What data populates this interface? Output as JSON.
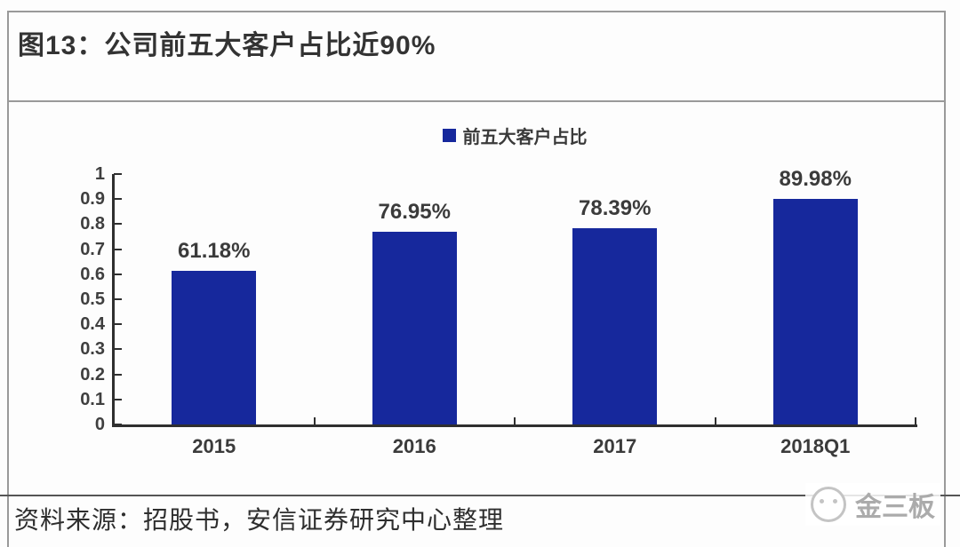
{
  "figure_title": "图13：公司前五大客户占比近90%",
  "source_note": "资料来源：招股书，安信证券研究中心整理",
  "watermark_text": "金三板",
  "chart_data": {
    "type": "bar",
    "title": "图13：公司前五大客户占比近90%",
    "legend": {
      "position": "top",
      "entries": [
        "前五大客户占比"
      ]
    },
    "categories": [
      "2015",
      "2016",
      "2017",
      "2018Q1"
    ],
    "series": [
      {
        "name": "前五大客户占比",
        "values": [
          0.6118,
          0.7695,
          0.7839,
          0.8998
        ]
      }
    ],
    "value_labels": [
      "61.18%",
      "76.95%",
      "78.39%",
      "89.98%"
    ],
    "xlabel": "",
    "ylabel": "",
    "ylim": [
      0,
      1
    ],
    "ytick_labels": [
      "0",
      "0.1",
      "0.2",
      "0.3",
      "0.4",
      "0.5",
      "0.6",
      "0.7",
      "0.8",
      "0.9",
      "1"
    ],
    "grid": false,
    "bar_color": "#16289C",
    "colors": {
      "bar": "#16289C",
      "axis": "#2f2f2f",
      "text": "#3b3b3b",
      "border": "#9a9a9a"
    }
  }
}
